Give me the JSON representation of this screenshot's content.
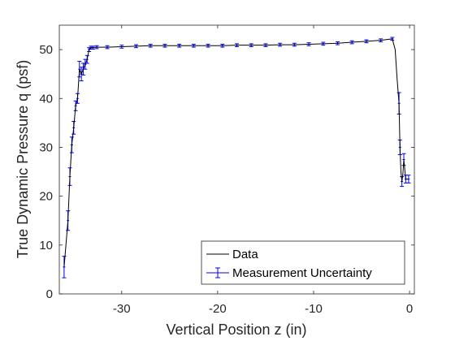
{
  "chart_data": {
    "type": "line",
    "title": "",
    "xlabel": "Vertical Position z (in)",
    "ylabel": "True Dynamic Pressure q (psf)",
    "xlim": [
      -36.5,
      0.5
    ],
    "ylim": [
      0,
      55
    ],
    "x_ticks": [
      -30,
      -20,
      -10,
      0
    ],
    "y_ticks": [
      0,
      10,
      20,
      30,
      40,
      50
    ],
    "grid": false,
    "legend_position": "bottom-right",
    "colors": {
      "data_line": "#000000",
      "uncertainty": "#0000ff",
      "axes": "#262626"
    },
    "series": [
      {
        "name": "Data",
        "style": "line",
        "x": [
          -36.0,
          -35.6,
          -35.4,
          -35.2,
          -35.0,
          -34.8,
          -34.6,
          -34.4,
          -34.2,
          -34.0,
          -33.8,
          -33.6,
          -33.4,
          -33.2,
          -33.0,
          -32.6,
          -31.5,
          -30.0,
          -28.5,
          -27.0,
          -25.5,
          -24.0,
          -22.5,
          -21.0,
          -19.5,
          -18.0,
          -16.5,
          -15.0,
          -13.5,
          -12.0,
          -10.5,
          -9.0,
          -7.5,
          -6.0,
          -4.5,
          -3.0,
          -1.8,
          -1.5,
          -1.3,
          -1.1,
          -1.0,
          -0.9,
          -0.8,
          -0.7,
          -0.6,
          -0.4,
          -0.3,
          -0.1
        ],
        "y": [
          5.5,
          15.0,
          24.0,
          30.5,
          34.0,
          38.5,
          40.0,
          46.0,
          45.0,
          46.0,
          47.0,
          48.0,
          50.0,
          50.4,
          50.4,
          50.5,
          50.5,
          50.6,
          50.7,
          50.8,
          50.8,
          50.8,
          50.8,
          50.8,
          50.8,
          50.9,
          50.9,
          50.9,
          51.0,
          51.0,
          51.1,
          51.2,
          51.3,
          51.5,
          51.7,
          51.9,
          52.2,
          50.0,
          44.0,
          39.0,
          30.0,
          25.0,
          23.0,
          24.5,
          27.5,
          23.5,
          23.5,
          23.5
        ]
      },
      {
        "name": "Measurement Uncertainty",
        "style": "errorbar",
        "x": [
          -36.0,
          -35.6,
          -35.4,
          -35.2,
          -35.0,
          -34.8,
          -34.6,
          -34.4,
          -34.2,
          -34.0,
          -33.8,
          -33.6,
          -33.4,
          -33.2,
          -33.0,
          -32.6,
          -31.5,
          -30.0,
          -28.5,
          -27.0,
          -25.5,
          -24.0,
          -22.5,
          -21.0,
          -19.5,
          -18.0,
          -16.5,
          -15.0,
          -13.5,
          -12.0,
          -10.5,
          -9.0,
          -7.5,
          -6.0,
          -4.5,
          -3.0,
          -1.8,
          -1.1,
          -1.0,
          -0.8,
          -0.6,
          -0.4,
          -0.1
        ],
        "y": [
          5.5,
          15.0,
          24.0,
          30.5,
          34.0,
          38.5,
          40.0,
          46.0,
          45.0,
          46.0,
          47.0,
          48.0,
          50.0,
          50.4,
          50.4,
          50.5,
          50.5,
          50.6,
          50.7,
          50.8,
          50.8,
          50.8,
          50.8,
          50.8,
          50.8,
          50.9,
          50.9,
          50.9,
          51.0,
          51.0,
          51.1,
          51.2,
          51.3,
          51.5,
          51.7,
          51.9,
          52.2,
          39.0,
          30.0,
          23.0,
          27.5,
          23.5,
          23.5
        ],
        "err": [
          2.2,
          2.0,
          1.8,
          1.6,
          1.3,
          1.0,
          1.0,
          1.6,
          1.4,
          1.2,
          1.0,
          0.8,
          0.4,
          0.3,
          0.3,
          0.3,
          0.3,
          0.3,
          0.3,
          0.3,
          0.3,
          0.3,
          0.3,
          0.3,
          0.3,
          0.3,
          0.3,
          0.3,
          0.3,
          0.3,
          0.3,
          0.3,
          0.3,
          0.3,
          0.3,
          0.3,
          0.3,
          2.2,
          1.5,
          1.0,
          1.2,
          0.8,
          0.8
        ]
      }
    ]
  }
}
